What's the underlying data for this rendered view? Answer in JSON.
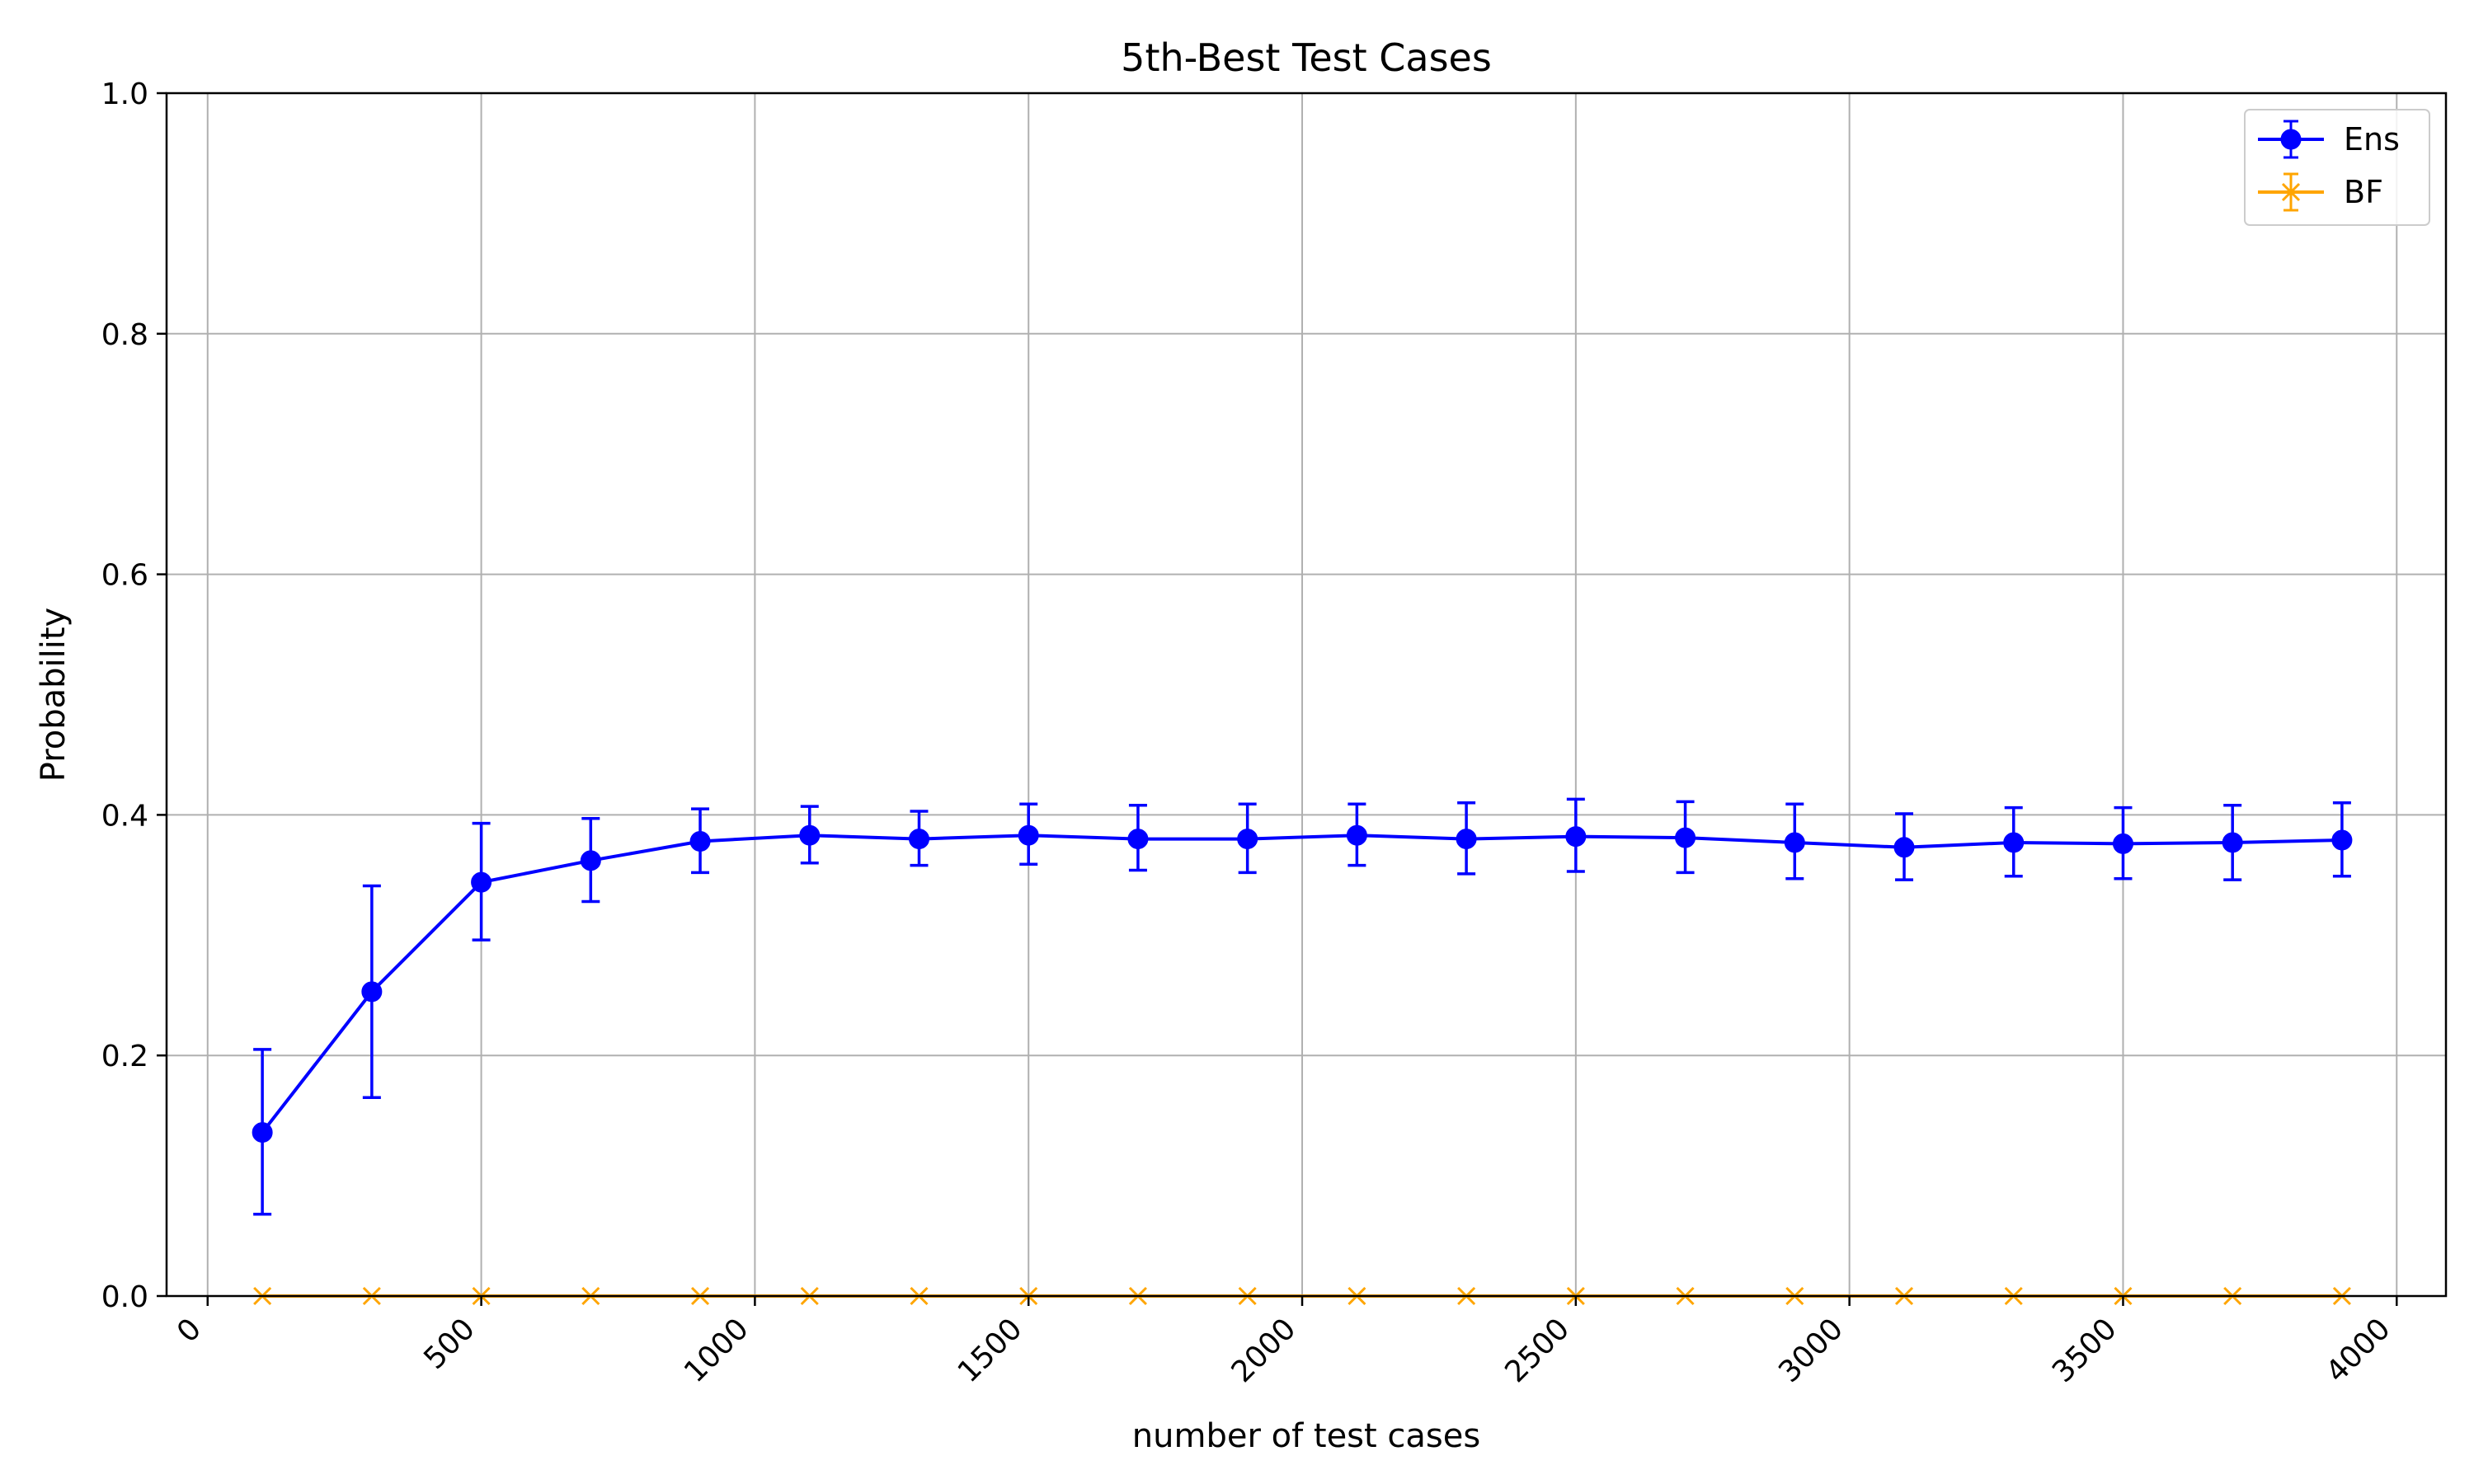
{
  "chart_data": {
    "type": "line",
    "title": "5th-Best Test Cases",
    "xlabel": "number of test cases",
    "ylabel": "Probability",
    "xlim": [
      -75,
      4090
    ],
    "ylim": [
      0.0,
      1.0
    ],
    "xticks": [
      0,
      500,
      1000,
      1500,
      2000,
      2500,
      3000,
      3500,
      4000
    ],
    "yticks": [
      0.0,
      0.2,
      0.4,
      0.6,
      0.8,
      1.0
    ],
    "ytick_labels": [
      "0.0",
      "0.2",
      "0.4",
      "0.6",
      "0.8",
      "1.0"
    ],
    "grid": true,
    "legend_position": "top-right",
    "x": [
      100,
      300,
      500,
      700,
      900,
      1100,
      1300,
      1500,
      1700,
      1900,
      2100,
      2300,
      2500,
      2700,
      2900,
      3100,
      3300,
      3500,
      3700,
      3900
    ],
    "series": [
      {
        "name": "Ens",
        "color": "#0000ff",
        "marker": "circle",
        "values": [
          0.136,
          0.253,
          0.344,
          0.362,
          0.378,
          0.383,
          0.38,
          0.383,
          0.38,
          0.38,
          0.383,
          0.38,
          0.382,
          0.381,
          0.377,
          0.373,
          0.377,
          0.376,
          0.377,
          0.379
        ],
        "err_low": [
          0.068,
          0.165,
          0.296,
          0.328,
          0.352,
          0.36,
          0.358,
          0.359,
          0.354,
          0.352,
          0.358,
          0.351,
          0.353,
          0.352,
          0.347,
          0.346,
          0.349,
          0.347,
          0.346,
          0.349
        ],
        "err_high": [
          0.205,
          0.341,
          0.393,
          0.397,
          0.405,
          0.407,
          0.403,
          0.409,
          0.408,
          0.409,
          0.409,
          0.41,
          0.413,
          0.411,
          0.409,
          0.401,
          0.406,
          0.406,
          0.408,
          0.41
        ]
      },
      {
        "name": "BF",
        "color": "#ffa500",
        "marker": "x",
        "values": [
          0,
          0,
          0,
          0,
          0,
          0,
          0,
          0,
          0,
          0,
          0,
          0,
          0,
          0,
          0,
          0,
          0,
          0,
          0,
          0
        ],
        "err_low": [
          0,
          0,
          0,
          0,
          0,
          0,
          0,
          0,
          0,
          0,
          0,
          0,
          0,
          0,
          0,
          0,
          0,
          0,
          0,
          0
        ],
        "err_high": [
          0,
          0,
          0,
          0,
          0,
          0,
          0,
          0,
          0,
          0,
          0,
          0,
          0,
          0,
          0,
          0,
          0,
          0,
          0,
          0
        ]
      }
    ]
  }
}
